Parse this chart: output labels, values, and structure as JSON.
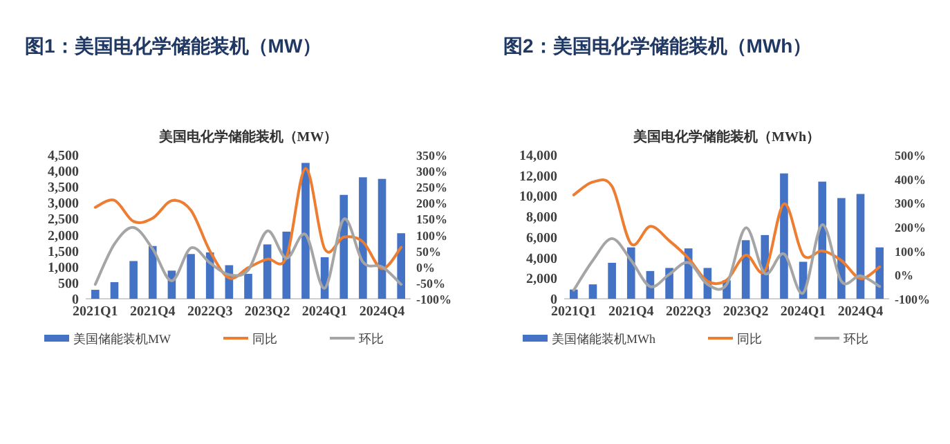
{
  "chart_data": [
    {
      "type": "bar",
      "title": "图1：美国电化学储能装机（MW）",
      "subtitle": "美国电化学储能装机（MW）",
      "categories": [
        "2021Q1",
        null,
        null,
        "2021Q4",
        null,
        null,
        "2022Q3",
        null,
        null,
        "2023Q2",
        null,
        null,
        "2024Q1",
        null,
        null,
        "2024Q4",
        null
      ],
      "series": [
        {
          "name": "美国储能装机MW",
          "color": "#4472c4",
          "values": [
            280,
            520,
            1180,
            1650,
            880,
            1400,
            1450,
            1050,
            780,
            1700,
            2100,
            4250,
            1300,
            3250,
            3800,
            3750,
            2050
          ]
        },
        {
          "name": "同比",
          "type": "line",
          "axis": "y2",
          "color": "#ed7d31",
          "values": [
            186,
            208,
            142,
            152,
            207,
            177,
            49,
            -35,
            -3,
            24,
            30,
            308,
            56,
            93,
            78,
            -6,
            61
          ]
        },
        {
          "name": "环比",
          "type": "line",
          "axis": "y2",
          "color": "#a5a5a5",
          "values": [
            -55,
            71,
            123,
            56,
            -44,
            59,
            12,
            -25,
            -10,
            112,
            27,
            101,
            -67,
            149,
            15,
            0,
            -55
          ]
        }
      ],
      "ylim": [
        0,
        4500
      ],
      "yticks": [
        0,
        {
          "value": 500,
          "label": "500"
        },
        {
          "value": 1000,
          "label": "1,000"
        },
        {
          "value": 1500,
          "label": "1,500"
        },
        {
          "value": 2000,
          "label": "2,000"
        },
        {
          "value": 2500,
          "label": "2,500"
        },
        {
          "value": 3000,
          "label": "3,000"
        },
        {
          "value": 3500,
          "label": "3,500"
        },
        {
          "value": 4000,
          "label": "4,000"
        },
        {
          "value": 4500,
          "label": "4,500"
        }
      ],
      "y2lim": [
        -100,
        350
      ],
      "y2ticks": [
        {
          "value": -100,
          "label": "-100%"
        },
        {
          "value": -50,
          "label": "-50%"
        },
        {
          "value": 0,
          "label": "0%"
        },
        {
          "value": 50,
          "label": "50%"
        },
        {
          "value": 100,
          "label": "100%"
        },
        {
          "value": 150,
          "label": "150%"
        },
        {
          "value": 200,
          "label": "200%"
        },
        {
          "value": 250,
          "label": "250%"
        },
        {
          "value": 300,
          "label": "300%"
        },
        {
          "value": 350,
          "label": "350%"
        }
      ],
      "legend": "bottom"
    },
    {
      "type": "bar",
      "title": "图2：美国电化学储能装机（MWh）",
      "subtitle": "美国电化学储能装机（MWh）",
      "categories": [
        "2021Q1",
        null,
        null,
        "2021Q4",
        null,
        null,
        "2022Q3",
        null,
        null,
        "2023Q2",
        null,
        null,
        "2024Q1",
        null,
        null,
        "2024Q4",
        null
      ],
      "series": [
        {
          "name": "美国储能装机MWh",
          "color": "#4472c4",
          "values": [
            900,
            1400,
            3500,
            5000,
            2700,
            3000,
            4900,
            3000,
            1800,
            5700,
            6200,
            12200,
            3600,
            11400,
            9800,
            10200,
            5000
          ]
        },
        {
          "name": "同比",
          "type": "line",
          "axis": "y2",
          "color": "#ed7d31",
          "values": [
            333,
            387,
            369,
            129,
            202,
            142,
            69,
            -27,
            -22,
            82,
            15,
            296,
            82,
            100,
            60,
            -16,
            33
          ]
        },
        {
          "name": "环比",
          "type": "line",
          "axis": "y2",
          "color": "#a5a5a5",
          "values": [
            -64,
            60,
            151,
            60,
            -49,
            2,
            51,
            -40,
            -40,
            196,
            5,
            87,
            -76,
            209,
            -27,
            -4,
            -49
          ]
        }
      ],
      "ylim": [
        0,
        14000
      ],
      "yticks": [
        0,
        {
          "value": 2000,
          "label": "2,000"
        },
        {
          "value": 4000,
          "label": "4,000"
        },
        {
          "value": 6000,
          "label": "6,000"
        },
        {
          "value": 8000,
          "label": "8,000"
        },
        {
          "value": 10000,
          "label": "10,000"
        },
        {
          "value": 12000,
          "label": "12,000"
        },
        {
          "value": 14000,
          "label": "14,000"
        }
      ],
      "y2lim": [
        -100,
        500
      ],
      "y2ticks": [
        {
          "value": -100,
          "label": "-100%"
        },
        {
          "value": 0,
          "label": "0%"
        },
        {
          "value": 100,
          "label": "100%"
        },
        {
          "value": 200,
          "label": "200%"
        },
        {
          "value": 300,
          "label": "300%"
        },
        {
          "value": 400,
          "label": "400%"
        },
        {
          "value": 500,
          "label": "500%"
        }
      ],
      "legend": "bottom"
    }
  ]
}
